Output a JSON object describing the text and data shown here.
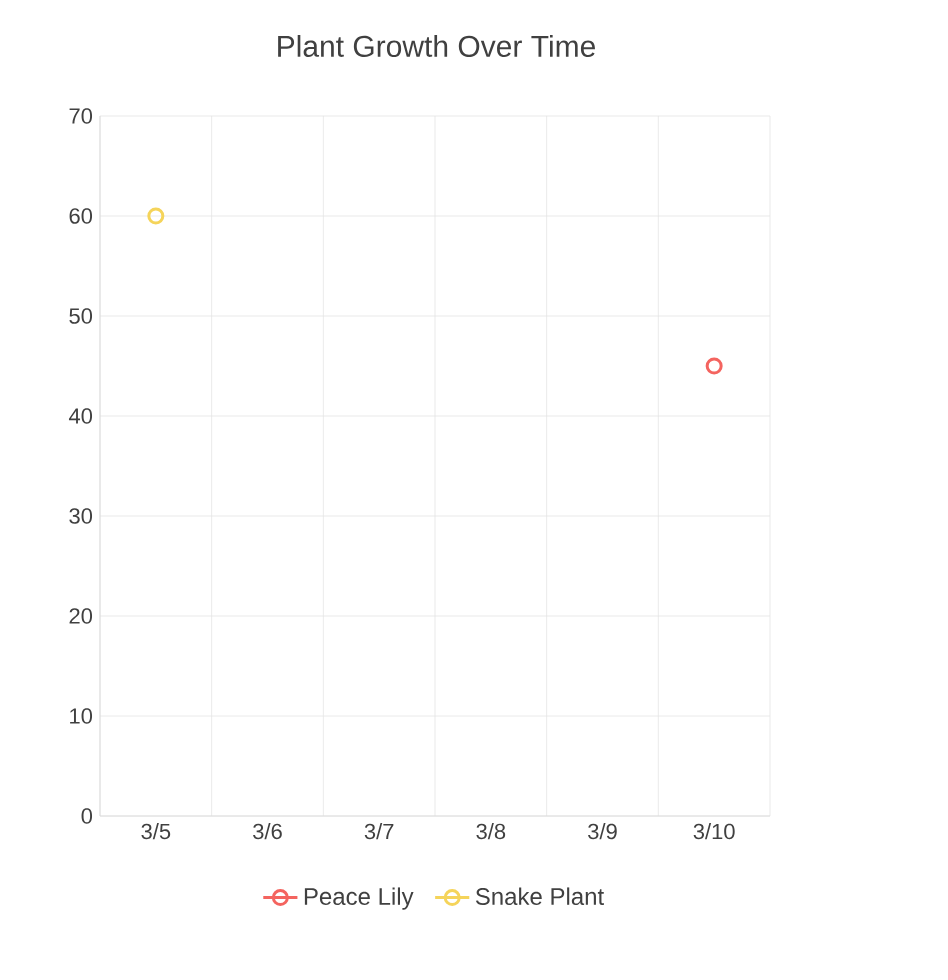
{
  "chart_data": {
    "type": "line",
    "title": "Plant Growth Over Time",
    "categories": [
      "3/5",
      "3/6",
      "3/7",
      "3/8",
      "3/9",
      "3/10"
    ],
    "series": [
      {
        "name": "Peace Lily",
        "color": "#f4645f",
        "values": [
          null,
          null,
          null,
          null,
          null,
          45
        ]
      },
      {
        "name": "Snake Plant",
        "color": "#f5d45a",
        "values": [
          60,
          null,
          null,
          null,
          null,
          null
        ]
      }
    ],
    "ylim": [
      0,
      70
    ],
    "yticks": [
      0,
      10,
      20,
      30,
      40,
      50,
      60,
      70
    ],
    "grid": true,
    "legend": "bottom",
    "marker": "circle",
    "line_style": "solid"
  }
}
